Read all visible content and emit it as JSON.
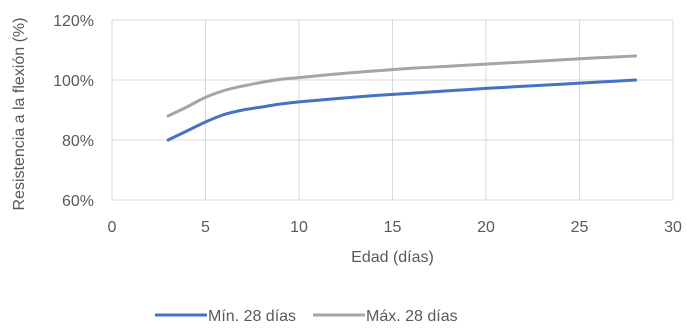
{
  "chart_data": {
    "type": "line",
    "title": "",
    "xlabel": "Edad (días)",
    "ylabel": "Resistencia a la flexión (%)",
    "xlim": [
      0,
      30
    ],
    "ylim": [
      60,
      120
    ],
    "x_ticks": [
      0,
      5,
      10,
      15,
      20,
      25,
      30
    ],
    "y_ticks": [
      60,
      80,
      100,
      120
    ],
    "y_tick_labels": [
      "60%",
      "80%",
      "100%",
      "120%"
    ],
    "x_tick_labels": [
      "0",
      "5",
      "10",
      "15",
      "20",
      "25",
      "30"
    ],
    "grid": true,
    "legend_position": "bottom",
    "series": [
      {
        "name": "Mín. 28 días",
        "color": "#4472C4",
        "x": [
          3,
          4,
          5,
          6,
          7,
          8,
          9,
          10,
          12,
          14,
          16,
          18,
          20,
          22,
          24,
          26,
          28
        ],
        "y": [
          80,
          83,
          86,
          88.5,
          90,
          91,
          92,
          92.7,
          93.8,
          94.8,
          95.6,
          96.4,
          97.2,
          97.9,
          98.6,
          99.3,
          100
        ]
      },
      {
        "name": "Máx. 28 días",
        "color": "#A5A5A5",
        "x": [
          3,
          4,
          5,
          6,
          7,
          8,
          9,
          10,
          12,
          14,
          16,
          18,
          20,
          22,
          24,
          26,
          28
        ],
        "y": [
          88,
          91,
          94.2,
          96.5,
          98,
          99.2,
          100.2,
          100.8,
          102,
          103,
          103.9,
          104.6,
          105.3,
          106,
          106.7,
          107.4,
          108
        ]
      }
    ]
  }
}
